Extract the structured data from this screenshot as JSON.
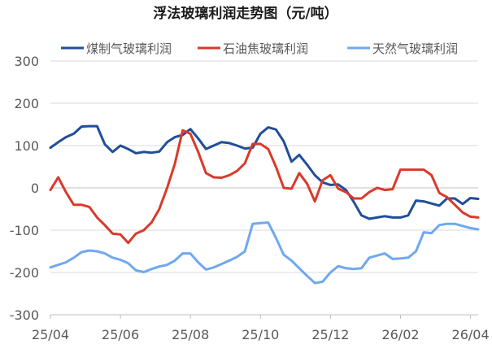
{
  "chart_data": {
    "type": "line",
    "title": "浮法玻璃利润走势图（元/吨）",
    "xlabel": "",
    "ylabel": "",
    "ylim": [
      -300,
      300
    ],
    "yticks": [
      300,
      200,
      100,
      0,
      -100,
      -200,
      -300
    ],
    "xtick_labels": [
      "25/04",
      "25/06",
      "25/08",
      "25/10",
      "25/12",
      "26/02",
      "26/04"
    ],
    "grid": true,
    "legend_position": "top",
    "colors": [
      "#1f4e9a",
      "#d93a2b",
      "#6fa8f0"
    ],
    "series": [
      {
        "name": "煤制气玻璃利润",
        "values": [
          95,
          108,
          120,
          128,
          145,
          146,
          146,
          103,
          85,
          100,
          92,
          82,
          85,
          83,
          86,
          108,
          120,
          125,
          139,
          117,
          92,
          100,
          108,
          106,
          100,
          93,
          95,
          128,
          143,
          138,
          110,
          62,
          78,
          55,
          30,
          13,
          7,
          8,
          -5,
          -33,
          -65,
          -73,
          -70,
          -67,
          -70,
          -70,
          -65,
          -30,
          -32,
          -37,
          -42,
          -25,
          -25,
          -38,
          -24,
          -26
        ]
      },
      {
        "name": "石油焦玻璃利润",
        "values": [
          -5,
          25,
          -10,
          -40,
          -40,
          -45,
          -70,
          -88,
          -108,
          -110,
          -130,
          -108,
          -100,
          -82,
          -50,
          0,
          57,
          136,
          128,
          85,
          35,
          25,
          24,
          30,
          40,
          58,
          104,
          104,
          92,
          50,
          0,
          -2,
          35,
          10,
          -32,
          18,
          30,
          -2,
          -10,
          -25,
          -25,
          -10,
          0,
          -5,
          -3,
          43,
          43,
          43,
          43,
          30,
          -12,
          -22,
          -40,
          -58,
          -68,
          -70
        ]
      },
      {
        "name": "天然气玻璃利润",
        "values": [
          -188,
          -182,
          -176,
          -165,
          -152,
          -148,
          -150,
          -155,
          -165,
          -170,
          -178,
          -195,
          -199,
          -192,
          -186,
          -182,
          -172,
          -155,
          -155,
          -176,
          -193,
          -188,
          -180,
          -172,
          -163,
          -150,
          -85,
          -83,
          -82,
          -118,
          -158,
          -172,
          -190,
          -208,
          -225,
          -222,
          -200,
          -185,
          -190,
          -192,
          -190,
          -165,
          -160,
          -155,
          -168,
          -167,
          -165,
          -150,
          -105,
          -107,
          -88,
          -85,
          -85,
          -90,
          -95,
          -98
        ]
      }
    ]
  }
}
